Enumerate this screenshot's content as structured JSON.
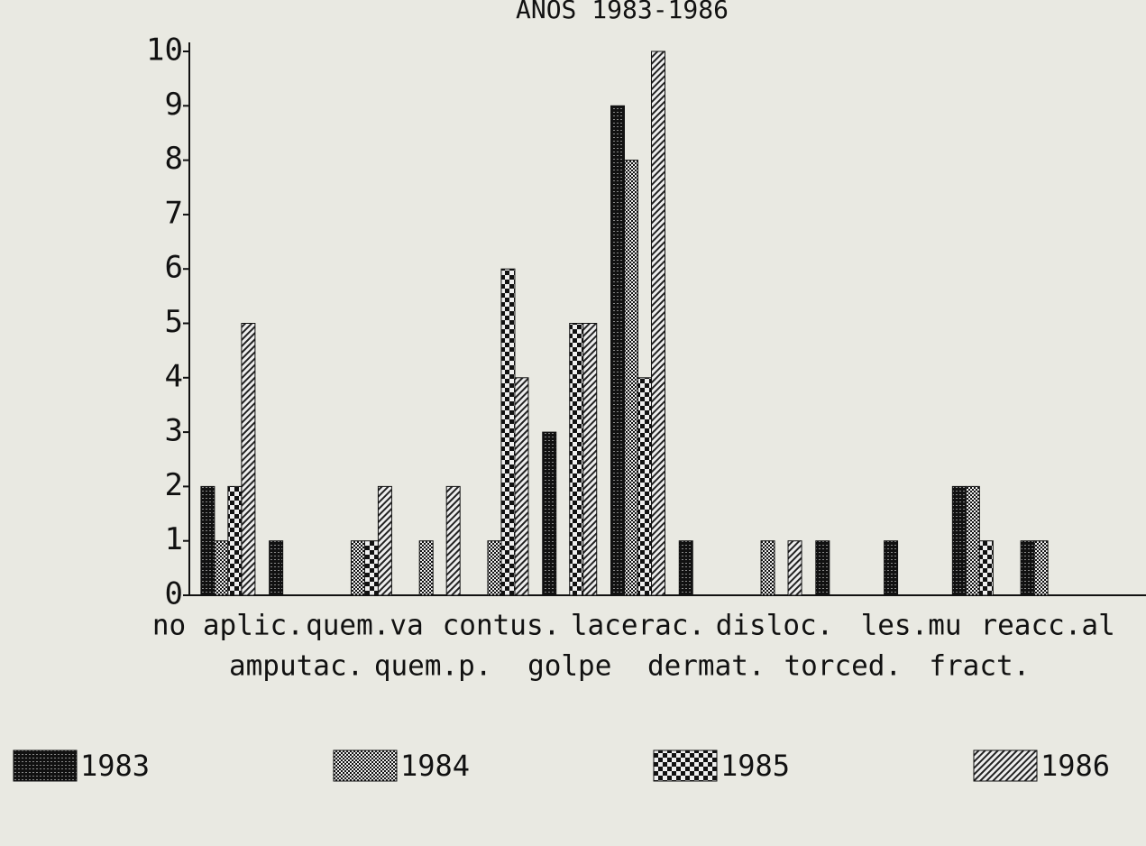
{
  "chart_data": {
    "type": "bar",
    "title": "ANOS 1983-1986",
    "categories": [
      "no aplic.",
      "amputac.",
      "quem.va",
      "quem.p.",
      "contus.",
      "golpe",
      "lacerac.",
      "dermat.",
      "disloc.",
      "torced.",
      "les.mu",
      "fract.",
      "reacc.al"
    ],
    "series": [
      {
        "name": "1983",
        "color": "#222222",
        "values": [
          2,
          1,
          0,
          0,
          0,
          3,
          9,
          1,
          0,
          1,
          1,
          2,
          1
        ]
      },
      {
        "name": "1984",
        "color": "#555555",
        "values": [
          1,
          0,
          1,
          1,
          1,
          0,
          8,
          0,
          1,
          0,
          0,
          2,
          1
        ]
      },
      {
        "name": "1985",
        "color": "#333333",
        "values": [
          2,
          0,
          1,
          0,
          6,
          5,
          4,
          0,
          0,
          0,
          0,
          1,
          0
        ]
      },
      {
        "name": "1986",
        "color": "#777777",
        "values": [
          5,
          0,
          2,
          2,
          4,
          5,
          10,
          0,
          1,
          0,
          0,
          0,
          0
        ]
      }
    ],
    "ylim": [
      0,
      10
    ],
    "yticks": [
      0,
      1,
      2,
      3,
      4,
      5,
      6,
      7,
      8,
      9,
      10
    ],
    "legend": "bottom"
  }
}
